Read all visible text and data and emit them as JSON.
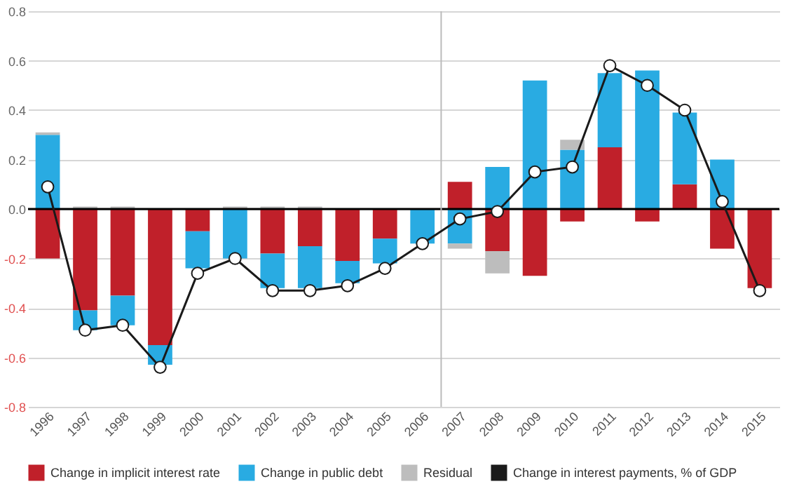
{
  "chart_data": {
    "type": "bar",
    "stacked": true,
    "categories": [
      "1996",
      "1997",
      "1998",
      "1999",
      "2000",
      "2001",
      "2002",
      "2003",
      "2004",
      "2005",
      "2006",
      "2007",
      "2008",
      "2009",
      "2010",
      "2011",
      "2012",
      "2013",
      "2014",
      "2015"
    ],
    "series": [
      {
        "name": "Change in implicit interest rate",
        "color": "#c0202a",
        "values": [
          -0.2,
          -0.41,
          -0.35,
          -0.55,
          -0.09,
          0,
          -0.18,
          -0.15,
          -0.21,
          -0.12,
          0,
          0.11,
          -0.17,
          -0.27,
          -0.05,
          0.25,
          -0.05,
          0.1,
          -0.16,
          -0.32
        ]
      },
      {
        "name": "Change in public debt",
        "color": "#29abe2",
        "values": [
          0.3,
          -0.08,
          -0.12,
          -0.08,
          -0.15,
          -0.2,
          -0.14,
          -0.17,
          -0.09,
          -0.1,
          -0.14,
          -0.14,
          0.17,
          0.52,
          0.24,
          0.3,
          0.56,
          0.29,
          0.2,
          0
        ]
      },
      {
        "name": "Residual",
        "color": "#bdbdbd",
        "values": [
          0.01,
          0.01,
          0.01,
          0,
          0,
          0.01,
          0.01,
          0.01,
          0,
          0,
          0,
          -0.02,
          -0.09,
          0,
          0.04,
          0,
          0,
          0,
          0,
          0
        ]
      },
      {
        "name": "Change in interest payments, % of GDP",
        "type": "line",
        "color": "#1a1a1a",
        "marker": "circle",
        "values": [
          0.09,
          -0.49,
          -0.47,
          -0.64,
          -0.26,
          -0.2,
          -0.33,
          -0.33,
          -0.31,
          -0.24,
          -0.14,
          -0.04,
          -0.01,
          0.15,
          0.17,
          0.58,
          0.5,
          0.4,
          0.03,
          -0.33
        ]
      }
    ],
    "ylim": [
      -0.8,
      0.8
    ],
    "yticks": [
      {
        "value": -0.8,
        "label": "-0.8"
      },
      {
        "value": -0.6,
        "label": "-0.6"
      },
      {
        "value": -0.4,
        "label": "-0.4"
      },
      {
        "value": -0.2,
        "label": "-0.2"
      },
      {
        "value": 0,
        "label": "0.0"
      },
      {
        "value": 0.2,
        "label": "0.2"
      },
      {
        "value": 0.4,
        "label": "0.4"
      },
      {
        "value": 0.6,
        "label": "0.6"
      },
      {
        "value": 0.8,
        "label": "0.8"
      }
    ],
    "ref_lines": [
      {
        "axis": "y",
        "value": 0,
        "color": "#000000"
      },
      {
        "axis": "x",
        "value": "2007",
        "color": "#bbbbbb"
      }
    ],
    "grid": "y",
    "legend": "bottom"
  }
}
